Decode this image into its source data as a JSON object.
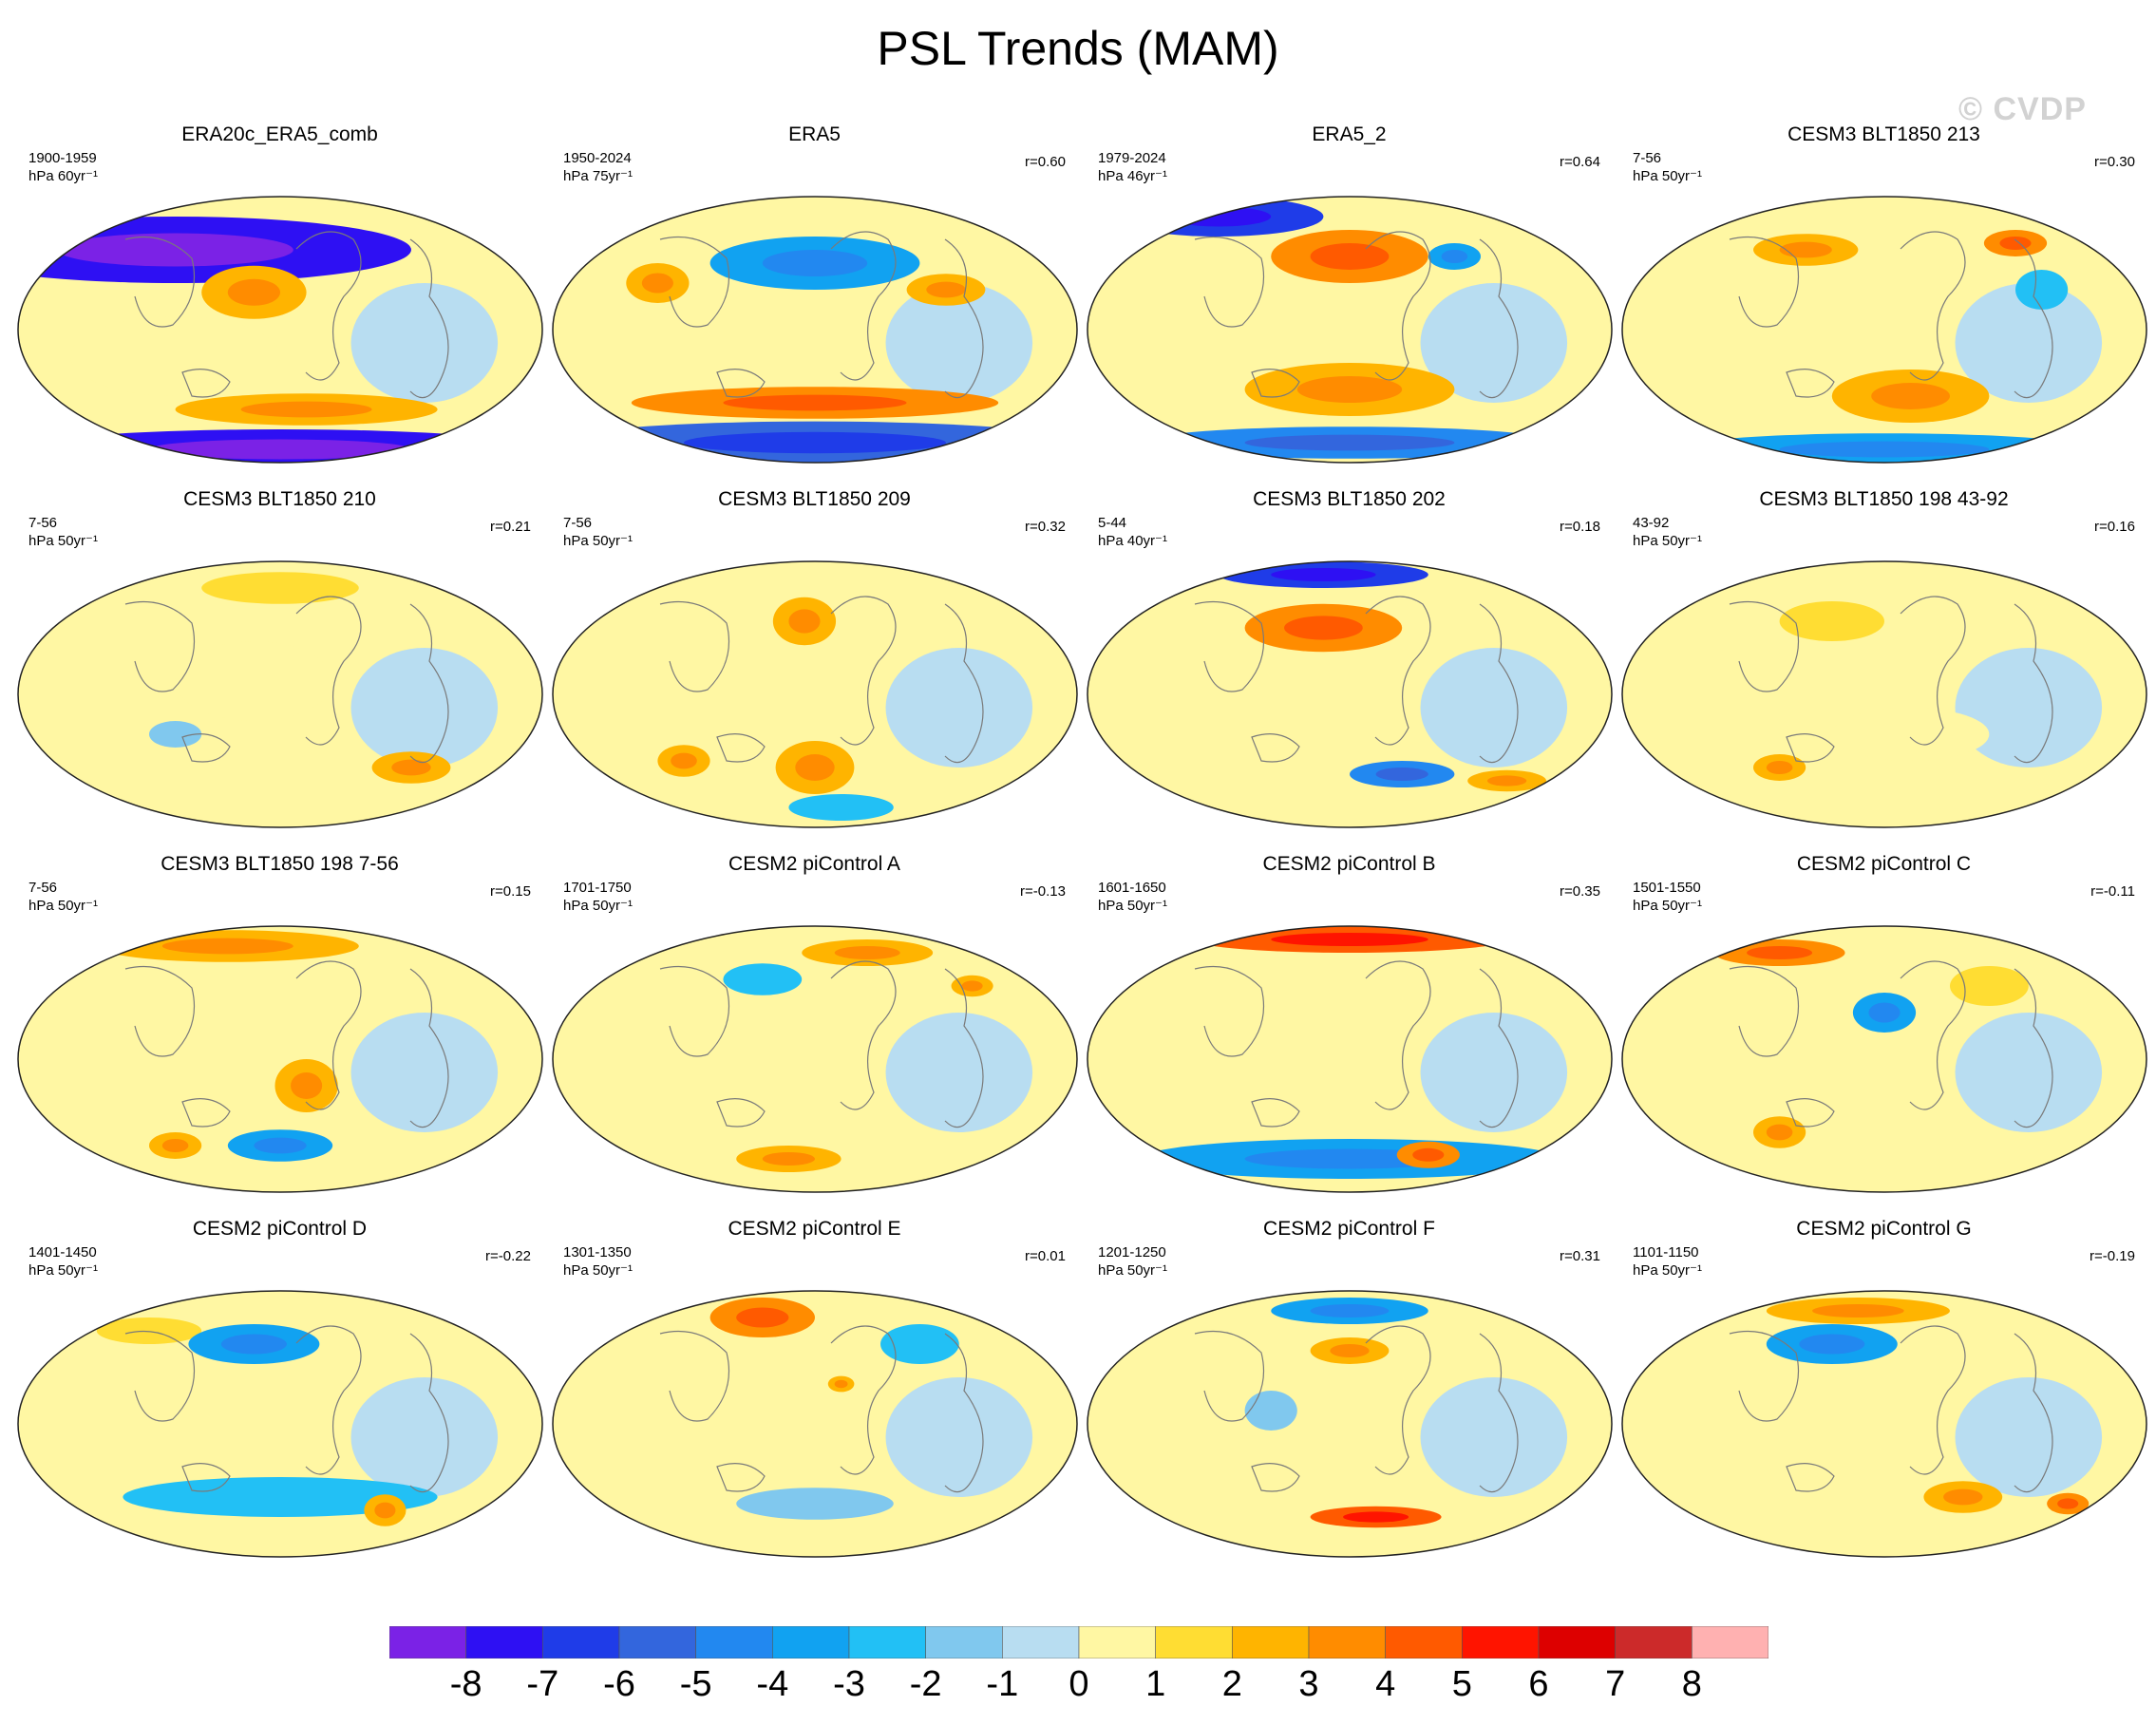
{
  "title": "PSL Trends (MAM)",
  "watermark": "© CVDP",
  "panels": [
    {
      "title": "ERA20c_ERA5_comb",
      "period": "1900-1959",
      "units": "hPa 60yr⁻¹",
      "r": "",
      "style": 0
    },
    {
      "title": "ERA5",
      "period": "1950-2024",
      "units": "hPa 75yr⁻¹",
      "r": "r=0.60",
      "style": 1
    },
    {
      "title": "ERA5_2",
      "period": "1979-2024",
      "units": "hPa 46yr⁻¹",
      "r": "r=0.64",
      "style": 2
    },
    {
      "title": "CESM3 BLT1850 213",
      "period": "7-56",
      "units": "hPa 50yr⁻¹",
      "r": "r=0.30",
      "style": 3
    },
    {
      "title": "CESM3 BLT1850 210",
      "period": "7-56",
      "units": "hPa 50yr⁻¹",
      "r": "r=0.21",
      "style": 4
    },
    {
      "title": "CESM3 BLT1850 209",
      "period": "7-56",
      "units": "hPa 50yr⁻¹",
      "r": "r=0.32",
      "style": 5
    },
    {
      "title": "CESM3 BLT1850 202",
      "period": "5-44",
      "units": "hPa 40yr⁻¹",
      "r": "r=0.18",
      "style": 6
    },
    {
      "title": "CESM3 BLT1850 198 43-92",
      "period": "43-92",
      "units": "hPa 50yr⁻¹",
      "r": "r=0.16",
      "style": 7
    },
    {
      "title": "CESM3 BLT1850 198 7-56",
      "period": "7-56",
      "units": "hPa 50yr⁻¹",
      "r": "r=0.15",
      "style": 8
    },
    {
      "title": "CESM2 piControl A",
      "period": "1701-1750",
      "units": "hPa 50yr⁻¹",
      "r": "r=-0.13",
      "style": 9
    },
    {
      "title": "CESM2 piControl B",
      "period": "1601-1650",
      "units": "hPa 50yr⁻¹",
      "r": "r=0.35",
      "style": 10
    },
    {
      "title": "CESM2 piControl C",
      "period": "1501-1550",
      "units": "hPa 50yr⁻¹",
      "r": "r=-0.11",
      "style": 11
    },
    {
      "title": "CESM2 piControl D",
      "period": "1401-1450",
      "units": "hPa 50yr⁻¹",
      "r": "r=-0.22",
      "style": 12
    },
    {
      "title": "CESM2 piControl E",
      "period": "1301-1350",
      "units": "hPa 50yr⁻¹",
      "r": "r=0.01",
      "style": 13
    },
    {
      "title": "CESM2 piControl F",
      "period": "1201-1250",
      "units": "hPa 50yr⁻¹",
      "r": "r=0.31",
      "style": 14
    },
    {
      "title": "CESM2 piControl G",
      "period": "1101-1150",
      "units": "hPa 50yr⁻¹",
      "r": "r=-0.19",
      "style": 15
    }
  ],
  "colorbar": {
    "labels": [
      "-8",
      "-7",
      "-6",
      "-5",
      "-4",
      "-3",
      "-2",
      "-1",
      "0",
      "1",
      "2",
      "3",
      "4",
      "5",
      "6",
      "7",
      "8"
    ],
    "colors": [
      "#7b22e6",
      "#2e10f3",
      "#1f3ce8",
      "#3366dd",
      "#2288f0",
      "#11a2f1",
      "#22c0f5",
      "#80c8ee",
      "#b8ddf1",
      "#fff7a3",
      "#ffdd33",
      "#ffb400",
      "#ff8c00",
      "#ff5a00",
      "#ff1400",
      "#dd0000",
      "#cc2a2a",
      "#ffb1b1"
    ]
  }
}
